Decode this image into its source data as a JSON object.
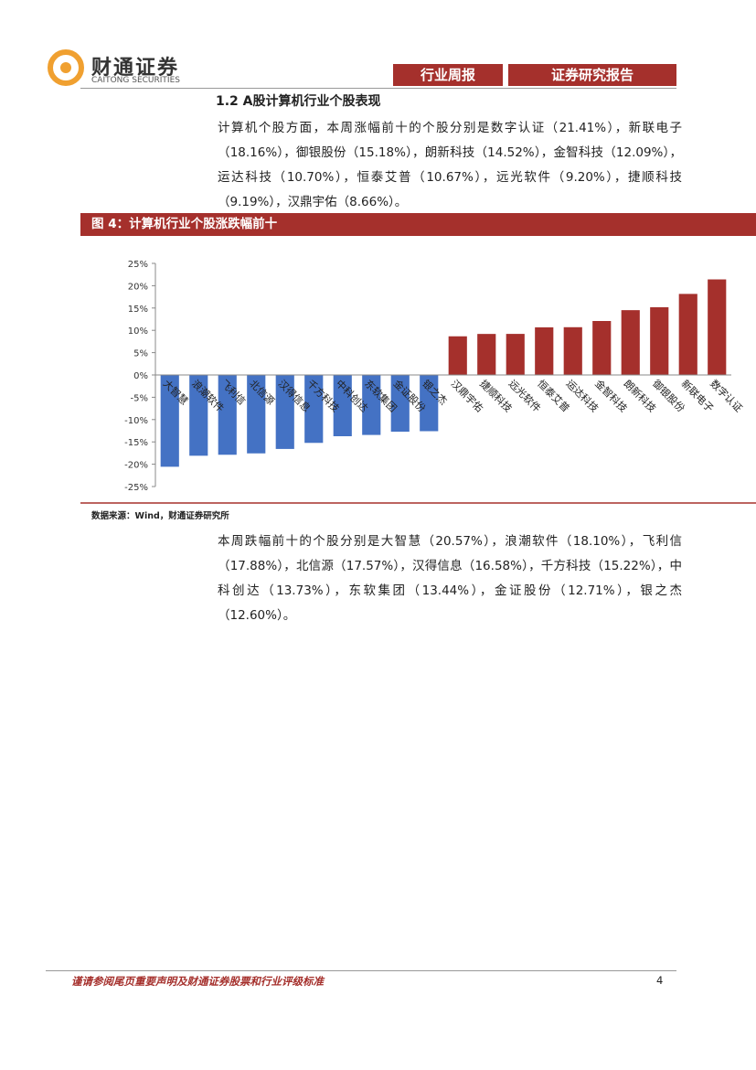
{
  "header": {
    "logo_name": "财通证券",
    "logo_subtitle": "CAITONG SECURITIES",
    "tab_1": "行业周报",
    "tab_2": "证券研究报告"
  },
  "section_heading": "1.2  A股计算机行业个股表现",
  "paragraph_1": "计算机个股方面，本周涨幅前十的个股分别是数字认证（21.41%），新联电子（18.16%），御银股份（15.18%），朗新科技（14.52%），金智科技（12.09%），运达科技（10.70%），恒泰艾普（10.67%），远光软件（9.20%），捷顺科技（9.19%），汉鼎宇佑（8.66%）。",
  "figure_title": "图 4：计算机行业个股涨跌幅前十",
  "chart_data": {
    "type": "bar",
    "categories": [
      "大智慧",
      "浪潮软件",
      "飞利信",
      "北信源",
      "汉得信息",
      "千方科技",
      "中科创达",
      "东软集团",
      "金证股份",
      "银之杰",
      "汉鼎宇佑",
      "捷顺科技",
      "远光软件",
      "恒泰艾普",
      "运达科技",
      "金智科技",
      "朗新科技",
      "御银股份",
      "新联电子",
      "数字认证"
    ],
    "values": [
      -20.57,
      -18.1,
      -17.88,
      -17.57,
      -16.58,
      -15.22,
      -13.73,
      -13.44,
      -12.71,
      -12.6,
      8.66,
      9.19,
      9.2,
      10.67,
      10.7,
      12.09,
      14.52,
      15.18,
      18.16,
      21.41
    ],
    "color_negative": "#4472c4",
    "color_positive": "#a5302c",
    "ylim": [
      -25,
      25
    ],
    "yticks": [
      {
        "value": 25,
        "label": "25%"
      },
      {
        "value": 20,
        "label": "20%"
      },
      {
        "value": 15,
        "label": "15%"
      },
      {
        "value": 10,
        "label": "10%"
      },
      {
        "value": 5,
        "label": "5%"
      },
      {
        "value": 0,
        "label": "0%"
      },
      {
        "value": -5,
        "label": "-5%"
      },
      {
        "value": -10,
        "label": "-10%"
      },
      {
        "value": -15,
        "label": "-15%"
      },
      {
        "value": -20,
        "label": "-20%"
      },
      {
        "value": -25,
        "label": "-25%"
      }
    ]
  },
  "figure_source": "数据来源：Wind，财通证券研究所",
  "paragraph_2": "本周跌幅前十的个股分别是大智慧（20.57%），浪潮软件（18.10%），飞利信（17.88%），北信源（17.57%），汉得信息（16.58%），千方科技（15.22%），中科创达（13.73%），东软集团（13.44%），金证股份（12.71%），银之杰（12.60%）。",
  "footer": {
    "disclaimer": "谨请参阅尾页重要声明及财通证券股票和行业评级标准",
    "page_number": "4"
  }
}
